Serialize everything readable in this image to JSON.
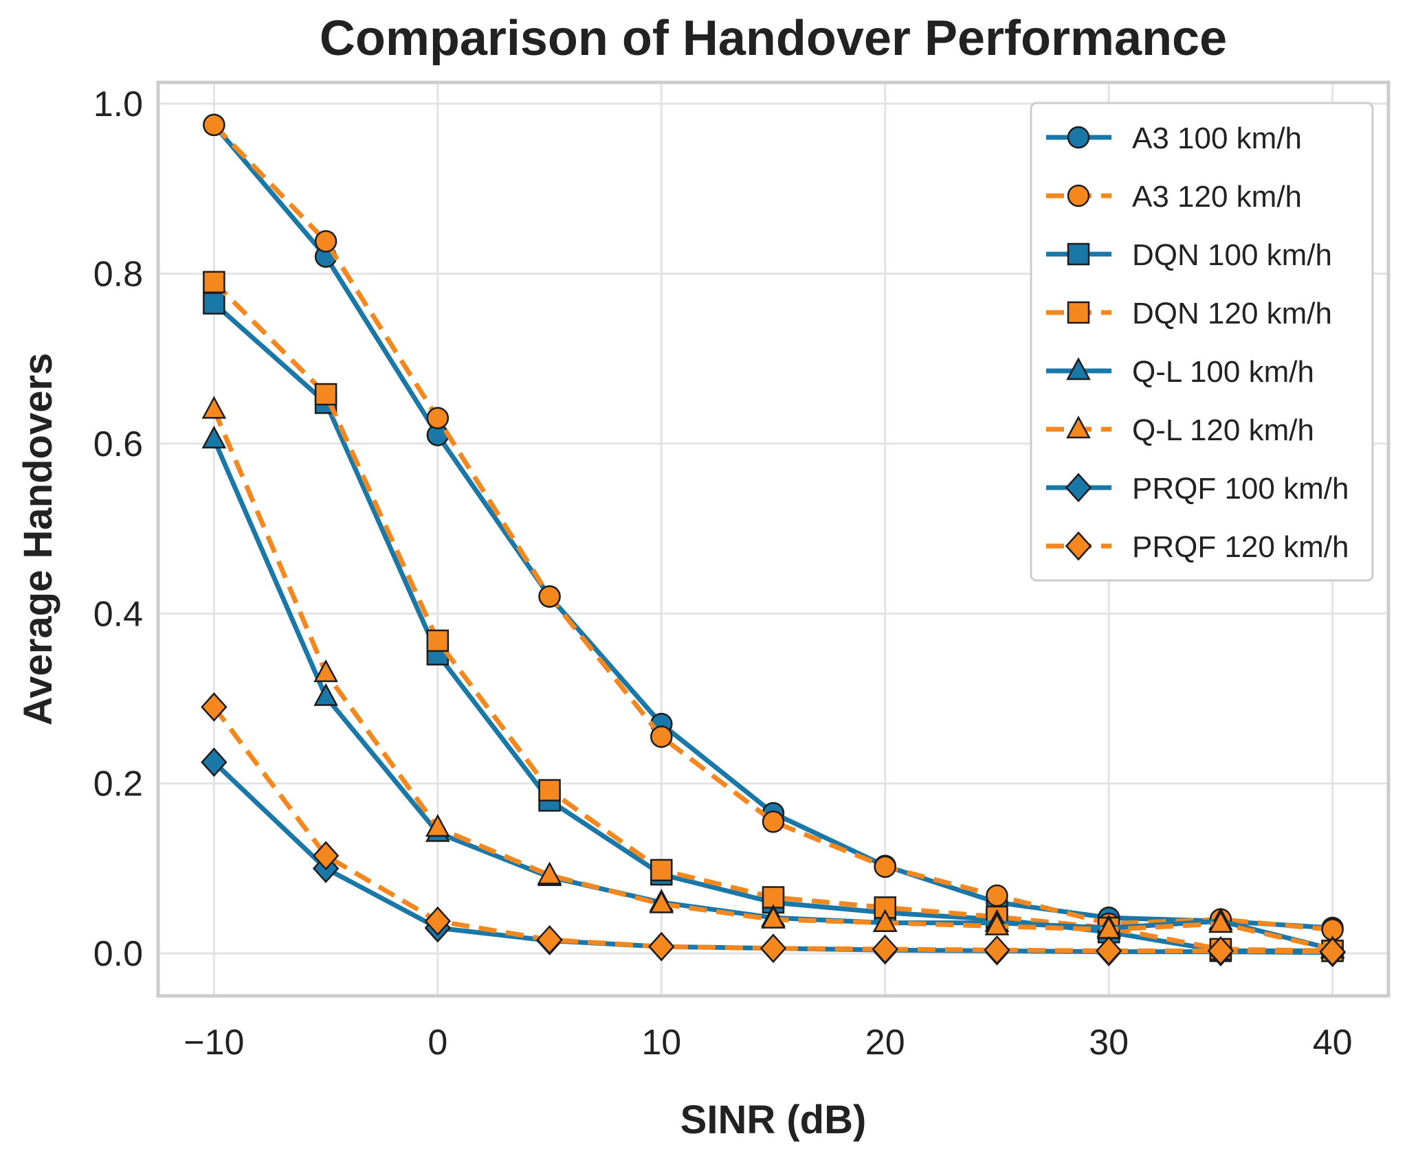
{
  "chart_data": {
    "type": "line",
    "title": "Comparison of Handover Performance",
    "xlabel": "SINR (dB)",
    "ylabel": "Average Handovers",
    "x": [
      -10,
      -5,
      0,
      5,
      10,
      15,
      20,
      25,
      30,
      35,
      40
    ],
    "xlim": [
      -12.5,
      42.5
    ],
    "ylim": [
      -0.05,
      1.025
    ],
    "xticks": [
      -10,
      0,
      10,
      20,
      30,
      40
    ],
    "xtick_labels": [
      "−10",
      "0",
      "10",
      "20",
      "30",
      "40"
    ],
    "yticks": [
      0.0,
      0.2,
      0.4,
      0.6,
      0.8,
      1.0
    ],
    "ytick_labels": [
      "0.0",
      "0.2",
      "0.4",
      "0.6",
      "0.8",
      "1.0"
    ],
    "grid": true,
    "legend_position": "top-right",
    "series": [
      {
        "name": "A3 100 km/h",
        "color": "#1a78a8",
        "style": "solid",
        "marker": "circle",
        "values": [
          0.975,
          0.82,
          0.61,
          0.42,
          0.27,
          0.165,
          0.103,
          0.06,
          0.042,
          0.038,
          0.03
        ]
      },
      {
        "name": "A3 120 km/h",
        "color": "#f5871f",
        "style": "dashed",
        "marker": "circle",
        "values": [
          0.975,
          0.838,
          0.63,
          0.42,
          0.255,
          0.155,
          0.102,
          0.068,
          0.035,
          0.04,
          0.028
        ]
      },
      {
        "name": "DQN 100 km/h",
        "color": "#1a78a8",
        "style": "solid",
        "marker": "square",
        "values": [
          0.765,
          0.648,
          0.352,
          0.18,
          0.093,
          0.06,
          0.048,
          0.04,
          0.025,
          0.003,
          0.003
        ]
      },
      {
        "name": "DQN 120 km/h",
        "color": "#f5871f",
        "style": "dashed",
        "marker": "square",
        "values": [
          0.79,
          0.658,
          0.368,
          0.192,
          0.098,
          0.066,
          0.054,
          0.043,
          0.03,
          0.005,
          0.003
        ]
      },
      {
        "name": "Q-L 100 km/h",
        "color": "#1a78a8",
        "style": "solid",
        "marker": "triangle",
        "values": [
          0.605,
          0.302,
          0.142,
          0.09,
          0.06,
          0.042,
          0.036,
          0.036,
          0.03,
          0.038,
          0.005
        ]
      },
      {
        "name": "Q-L 120 km/h",
        "color": "#f5871f",
        "style": "dashed",
        "marker": "triangle",
        "values": [
          0.64,
          0.33,
          0.148,
          0.092,
          0.058,
          0.04,
          0.036,
          0.032,
          0.028,
          0.035,
          0.005
        ]
      },
      {
        "name": "PRQF 100 km/h",
        "color": "#1a78a8",
        "style": "solid",
        "marker": "diamond",
        "values": [
          0.225,
          0.1,
          0.03,
          0.015,
          0.008,
          0.006,
          0.004,
          0.003,
          0.002,
          0.002,
          0.001
        ]
      },
      {
        "name": "PRQF 120 km/h",
        "color": "#f5871f",
        "style": "dashed",
        "marker": "diamond",
        "values": [
          0.29,
          0.115,
          0.038,
          0.016,
          0.008,
          0.006,
          0.005,
          0.004,
          0.003,
          0.003,
          0.002
        ]
      }
    ]
  }
}
